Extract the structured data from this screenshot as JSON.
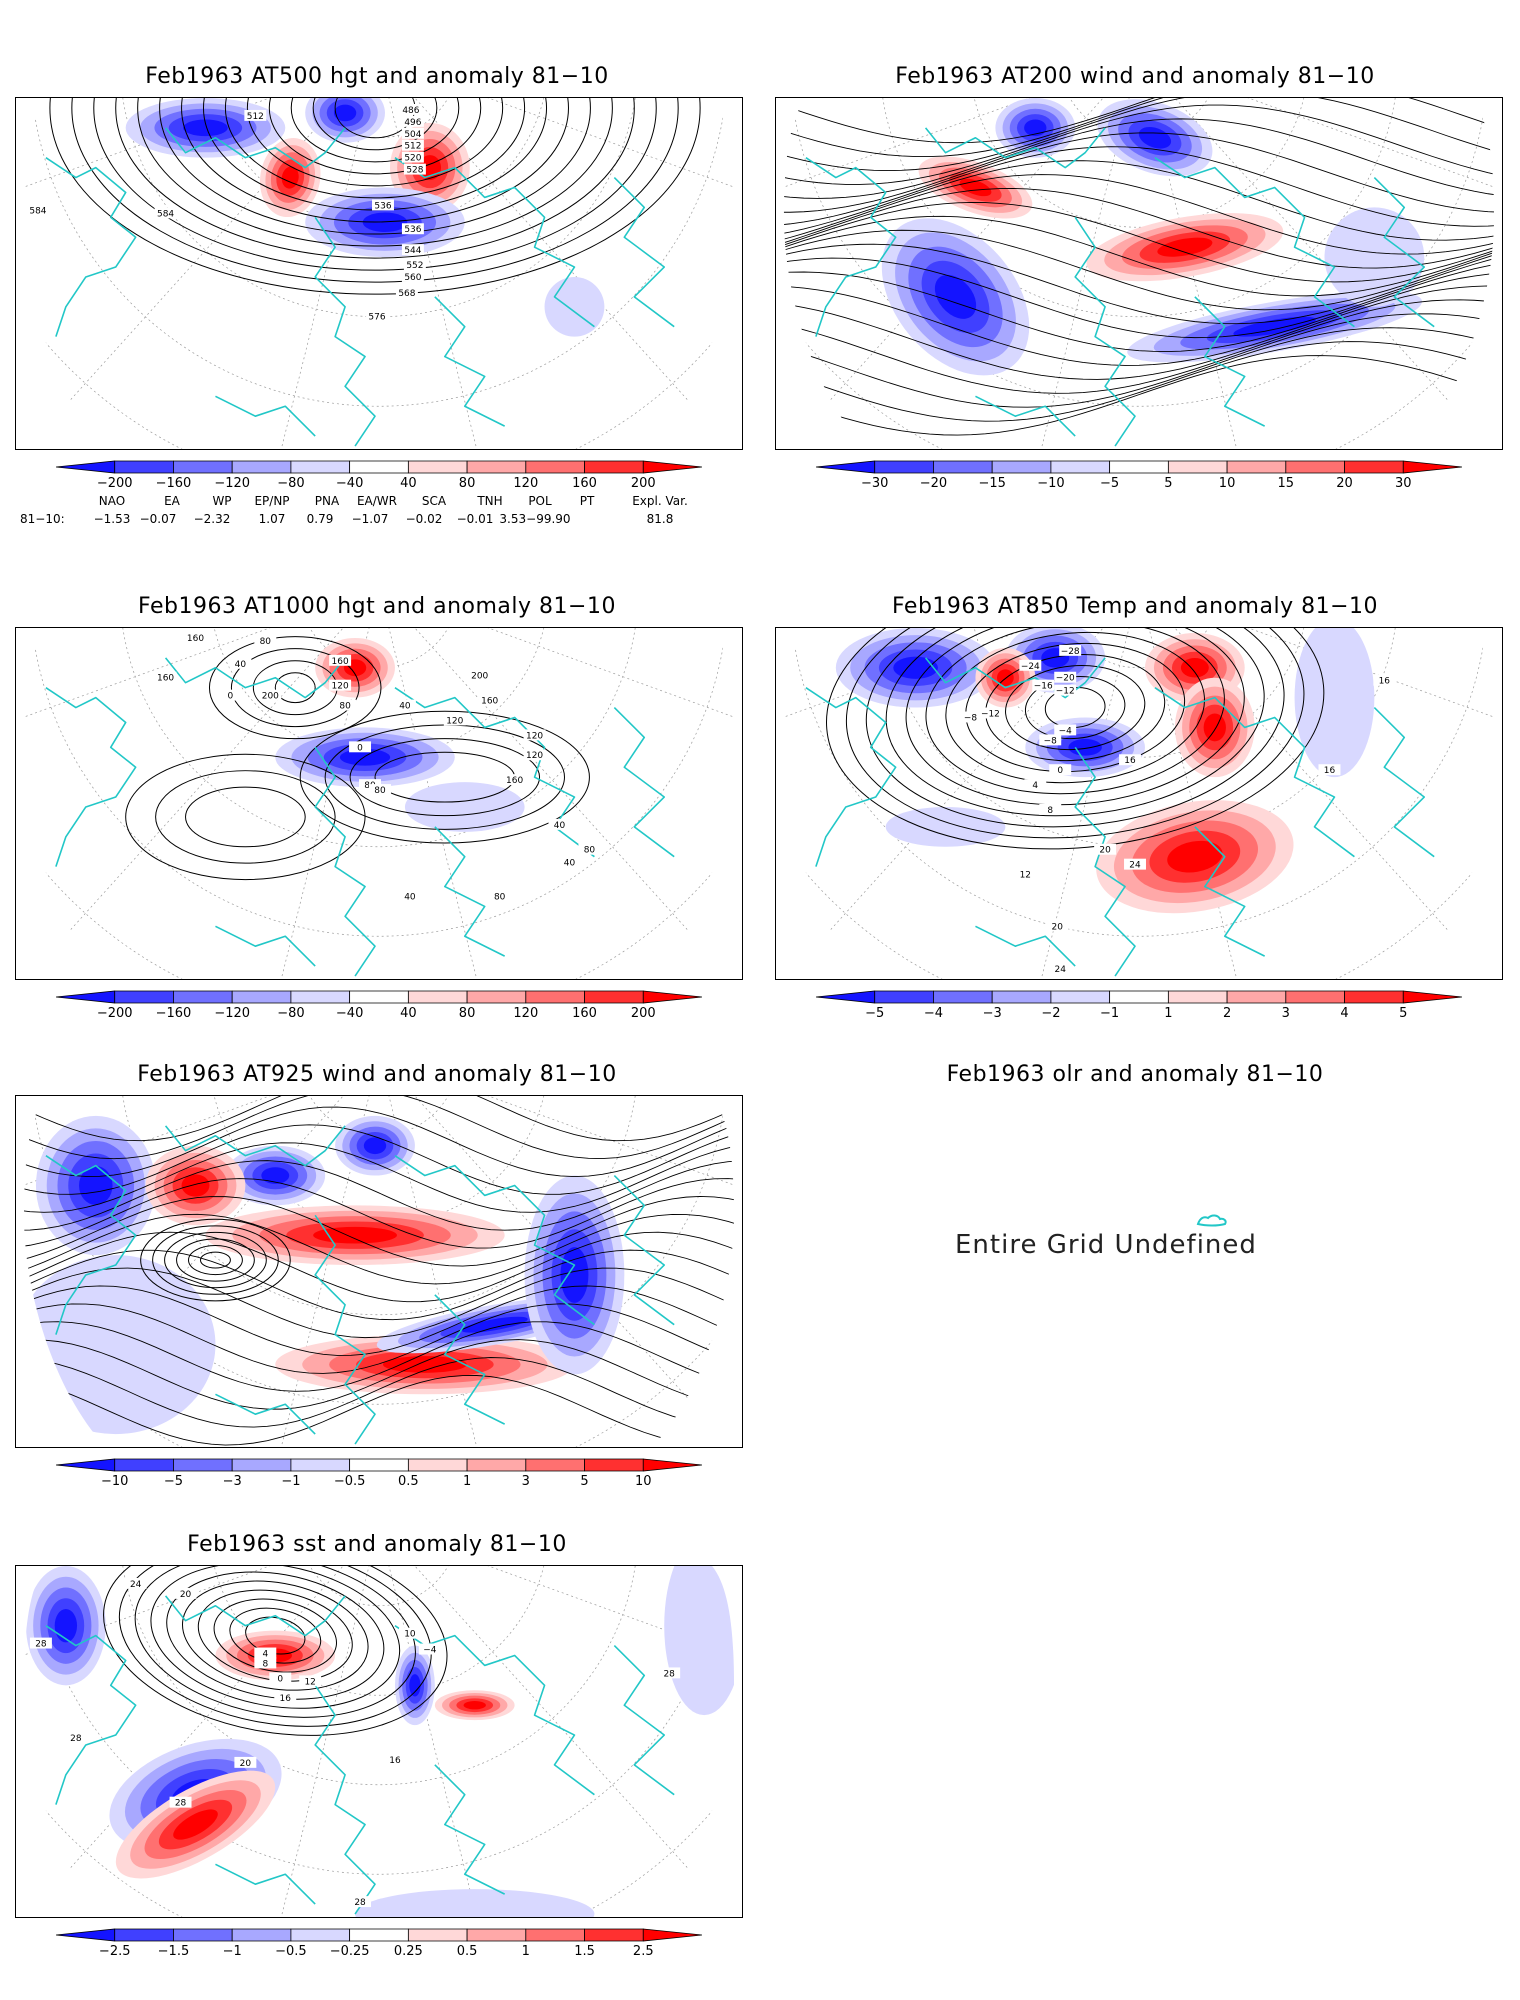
{
  "panels": [
    {
      "id": "p1",
      "title": "Feb1963 AT500 hgt and anomaly 81−10",
      "colorbar": [
        "−200",
        "−160",
        "−120",
        "−80",
        "−40",
        "40",
        "80",
        "120",
        "160",
        "200"
      ],
      "contour_labels": [
        "512",
        "486",
        "496",
        "504",
        "512",
        "520",
        "528",
        "536",
        "536",
        "544",
        "552",
        "560",
        "568",
        "576",
        "584",
        "584"
      ]
    },
    {
      "id": "p2",
      "title": "Feb1963 AT200 wind and anomaly 81−10",
      "colorbar": [
        "−30",
        "−20",
        "−15",
        "−10",
        "−5",
        "5",
        "10",
        "15",
        "20",
        "30"
      ]
    },
    {
      "id": "p3",
      "title": "Feb1963 AT1000 hgt and anomaly 81−10",
      "colorbar": [
        "−200",
        "−160",
        "−120",
        "−80",
        "−40",
        "40",
        "80",
        "120",
        "160",
        "200"
      ],
      "contour_labels": [
        "160",
        "160",
        "80",
        "40",
        "0",
        "200",
        "160",
        "120",
        "80",
        "40",
        "200",
        "160",
        "120",
        "0",
        "80",
        "80",
        "120",
        "160",
        "120",
        "40",
        "40",
        "80",
        "80",
        "40"
      ]
    },
    {
      "id": "p4",
      "title": "Feb1963 AT850 Temp and anomaly 81−10",
      "colorbar": [
        "−5",
        "−4",
        "−3",
        "−2",
        "−1",
        "1",
        "2",
        "3",
        "4",
        "5"
      ],
      "contour_labels": [
        "−28",
        "−24",
        "−20",
        "−16",
        "−12",
        "−12",
        "−8",
        "−8",
        "−4",
        "0",
        "4",
        "8",
        "12",
        "16",
        "16",
        "16",
        "20",
        "24",
        "24",
        "20"
      ]
    },
    {
      "id": "p5",
      "title": "Feb1963 AT925 wind and anomaly 81−10",
      "colorbar": [
        "−10",
        "−5",
        "−3",
        "−1",
        "−0.5",
        "0.5",
        "1",
        "3",
        "5",
        "10"
      ]
    },
    {
      "id": "p6",
      "title": "Feb1963 olr and anomaly 81−10",
      "undefined_text": "Entire Grid Undefined"
    },
    {
      "id": "p7",
      "title": "Feb1963 sst and anomaly 81−10",
      "colorbar": [
        "−2.5",
        "−1.5",
        "−1",
        "−0.5",
        "−0.25",
        "0.25",
        "0.5",
        "1",
        "1.5",
        "2.5"
      ],
      "contour_labels": [
        "24",
        "28",
        "20",
        "0",
        "4",
        "8",
        "12",
        "16",
        "20",
        "28",
        "28",
        "16",
        "28",
        "−4",
        "10",
        "28"
      ]
    }
  ],
  "indices": {
    "headers": [
      "NAO",
      "EA",
      "WP",
      "EP/NP",
      "PNA",
      "EA/WR",
      "SCA",
      "TNH",
      "POL",
      "PT",
      "Expl. Var."
    ],
    "row_label": "81−10:",
    "values": [
      "−1.53",
      "−0.07",
      "−2.32",
      "1.07",
      "0.79",
      "−1.07",
      "−0.02",
      "−0.01",
      "3.53",
      "−99.90",
      "81.8"
    ]
  },
  "colors": {
    "coastline": "#22c7c7",
    "blue_scale": [
      "#1414ff",
      "#4040ff",
      "#7070ff",
      "#a8a8ff",
      "#d8d8ff"
    ],
    "red_scale": [
      "#ffd8d8",
      "#ffa8a8",
      "#ff7070",
      "#ff3030",
      "#ff0000"
    ],
    "contour": "#000000"
  }
}
